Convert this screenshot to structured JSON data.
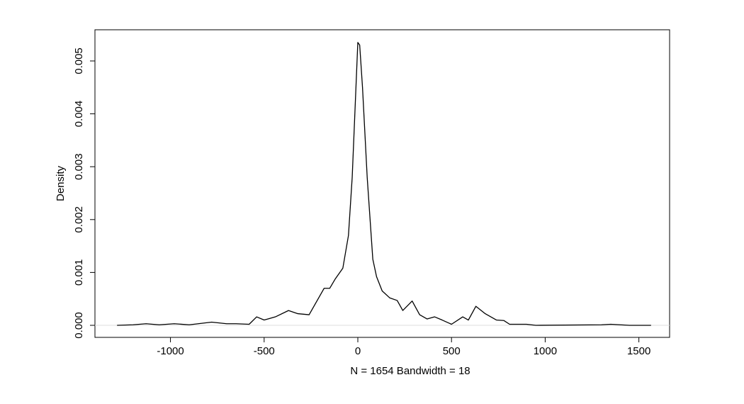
{
  "chart_data": {
    "type": "line",
    "x_label": "N = 1654   Bandwidth = 18",
    "y_label": "Density",
    "x": [
      -1285,
      -1200,
      -1130,
      -1060,
      -980,
      -900,
      -780,
      -700,
      -650,
      -580,
      -540,
      -500,
      -440,
      -370,
      -320,
      -260,
      -220,
      -180,
      -150,
      -120,
      -80,
      -50,
      -30,
      -10,
      0,
      10,
      25,
      50,
      80,
      100,
      130,
      170,
      210,
      240,
      290,
      330,
      370,
      410,
      450,
      500,
      560,
      590,
      630,
      680,
      740,
      780,
      810,
      900,
      950,
      1300,
      1350,
      1450,
      1565
    ],
    "series": [
      {
        "color": "#000000",
        "values": [
          0,
          1e-05,
          3e-05,
          1e-05,
          3e-05,
          1e-05,
          6e-05,
          3e-05,
          3e-05,
          2e-05,
          0.00016,
          0.0001,
          0.00016,
          0.00028,
          0.00022,
          0.0002,
          0.00045,
          0.0007,
          0.0007,
          0.00088,
          0.00108,
          0.0017,
          0.0028,
          0.0045,
          0.00535,
          0.0053,
          0.0045,
          0.0028,
          0.00125,
          0.00092,
          0.00065,
          0.00052,
          0.00047,
          0.00028,
          0.00046,
          0.0002,
          0.00012,
          0.00016,
          0.0001,
          2e-05,
          0.00016,
          0.0001,
          0.00036,
          0.00022,
          0.0001,
          9e-05,
          2e-05,
          2e-05,
          0,
          1e-05,
          2e-05,
          0,
          0
        ]
      }
    ],
    "xlim": [
      -1403,
      1664
    ],
    "ylim": [
      -0.000228,
      0.00559
    ],
    "xticks": [
      -1000,
      -500,
      0,
      500,
      1000,
      1500
    ],
    "yticks": [
      {
        "value": 0,
        "label": "0.000"
      },
      0.001,
      0.002,
      0.003,
      0.004,
      0.005
    ],
    "zero_line_color": "#dddddd"
  }
}
